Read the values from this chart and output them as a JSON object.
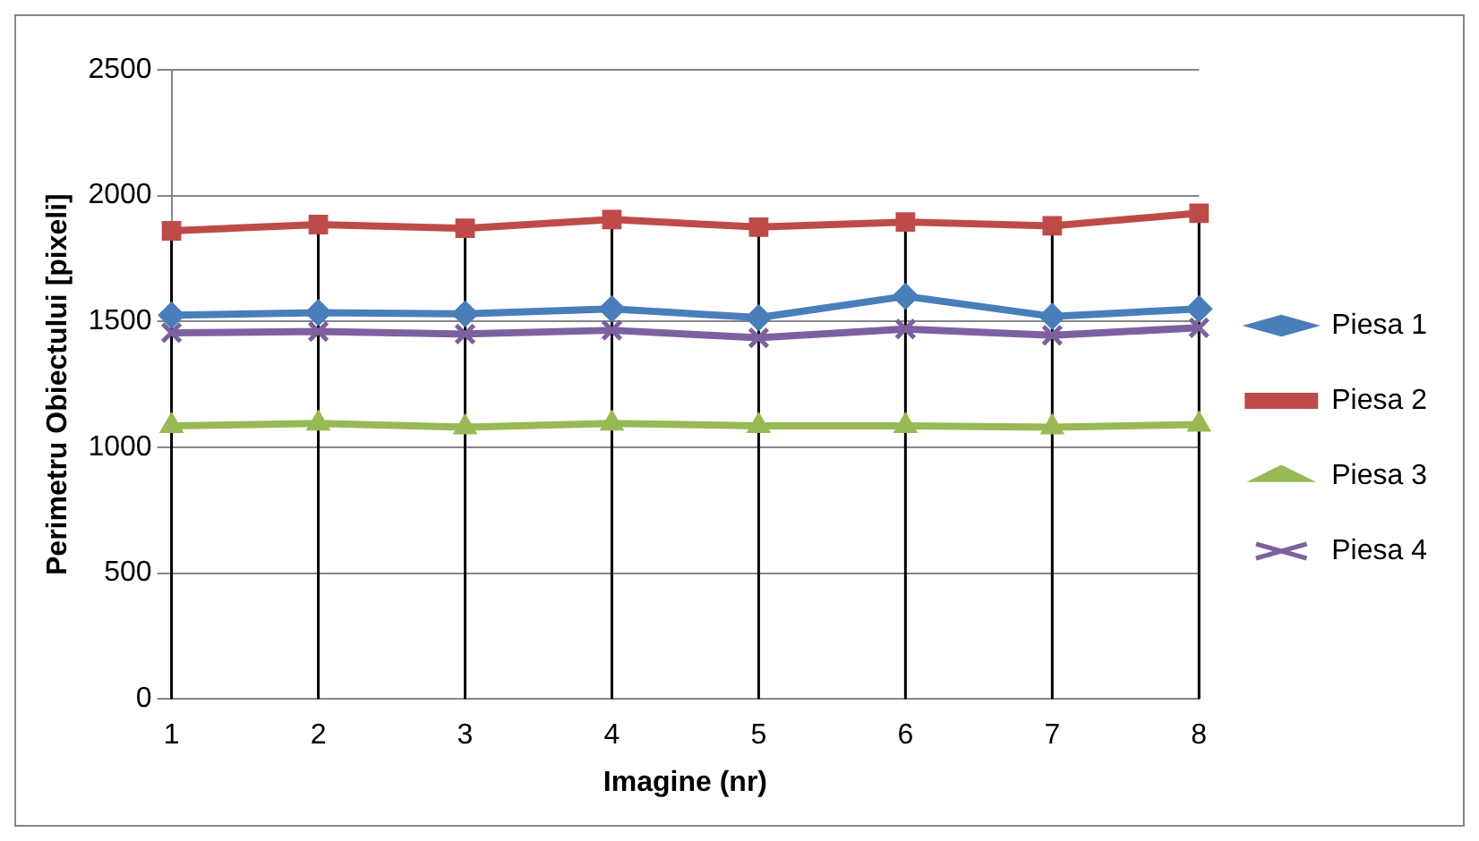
{
  "chart_data": {
    "type": "line",
    "xlabel": "Imagine (nr)",
    "ylabel": "Perimetru Obiectului [pixeli]",
    "categories": [
      "1",
      "2",
      "3",
      "4",
      "5",
      "6",
      "7",
      "8"
    ],
    "series": [
      {
        "name": "Piesa 1",
        "color": "#4a7ebb",
        "marker": "diamond",
        "values": [
          1525,
          1535,
          1530,
          1550,
          1515,
          1600,
          1520,
          1550
        ]
      },
      {
        "name": "Piesa 2",
        "color": "#be4b48",
        "marker": "square",
        "values": [
          1860,
          1885,
          1870,
          1905,
          1875,
          1895,
          1880,
          1930
        ]
      },
      {
        "name": "Piesa 3",
        "color": "#98b954",
        "marker": "triangle",
        "values": [
          1085,
          1095,
          1080,
          1095,
          1085,
          1085,
          1080,
          1090
        ]
      },
      {
        "name": "Piesa 4",
        "color": "#7d60a0",
        "marker": "cross",
        "values": [
          1455,
          1460,
          1450,
          1465,
          1435,
          1470,
          1445,
          1475
        ]
      }
    ],
    "ylim": [
      0,
      2500
    ],
    "yticks": [
      0,
      500,
      1000,
      1500,
      2000,
      2500
    ],
    "grid": true,
    "legend": "right",
    "line_style": "solid"
  }
}
